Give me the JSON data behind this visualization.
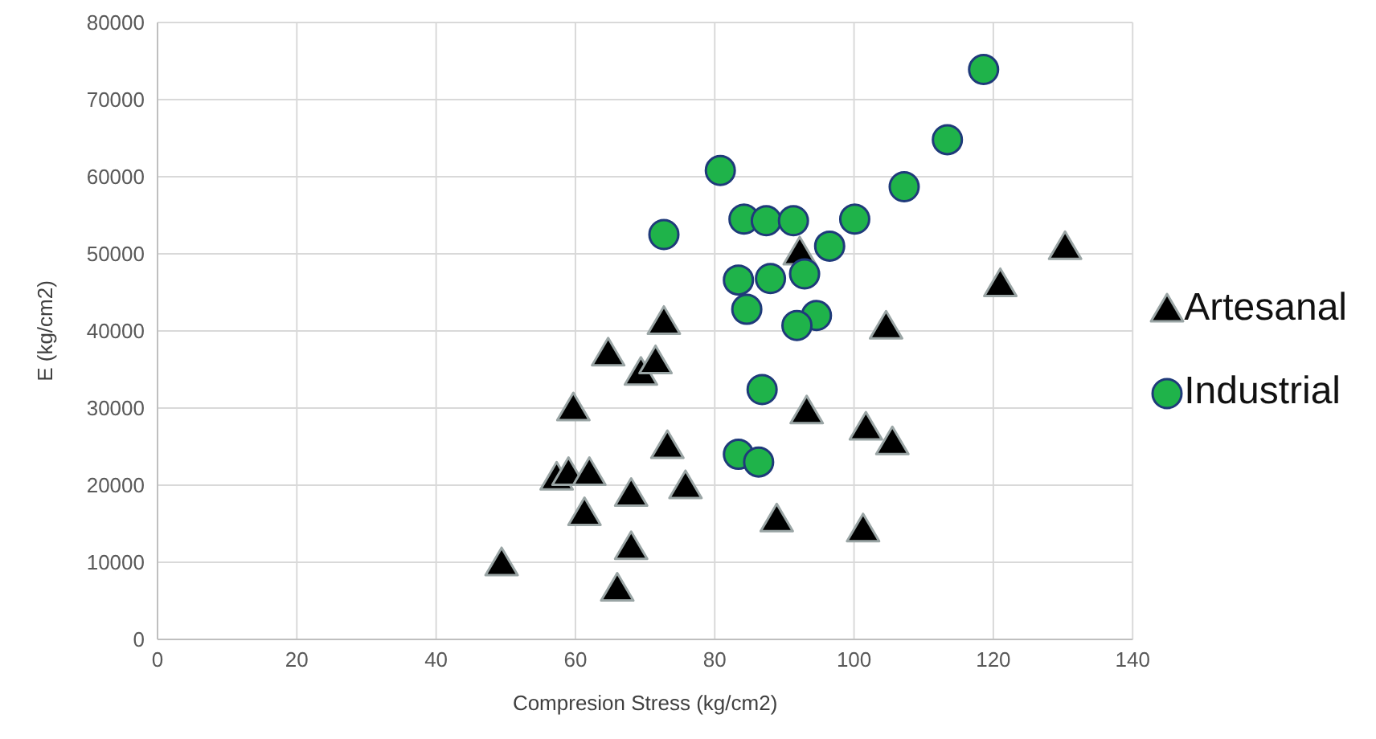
{
  "chart_data": {
    "type": "scatter",
    "xlabel": "Compresion Stress (kg/cm2)",
    "ylabel": "E (kg/cm2)",
    "xlim": [
      0,
      140
    ],
    "xticks": [
      0,
      20,
      40,
      60,
      80,
      100,
      120,
      140
    ],
    "ylim": [
      0,
      80000
    ],
    "yticks": [
      0,
      10000,
      20000,
      30000,
      40000,
      50000,
      60000,
      70000,
      80000
    ],
    "grid": true,
    "legend": "right",
    "series": [
      {
        "name": "Artesanal",
        "color": "#000000",
        "marker": "triangle",
        "x": [
          49.4,
          59.7,
          57.3,
          59,
          62,
          61.3,
          64.7,
          68,
          68,
          66,
          69.4,
          71.5,
          72.7,
          73.2,
          75.8,
          88.9,
          93.2,
          92.2,
          101.7,
          101.3,
          104.6,
          105.5,
          121,
          130.3
        ],
        "values": [
          9800,
          29900,
          20900,
          21500,
          21500,
          16300,
          37000,
          18800,
          11900,
          6500,
          34500,
          36000,
          41100,
          25000,
          19800,
          15500,
          29500,
          50100,
          27400,
          14200,
          40500,
          25500,
          46000,
          50800
        ]
      },
      {
        "name": "Industrial",
        "color": "#1fb34a",
        "marker": "circle",
        "x": [
          118.6,
          113.4,
          107.2,
          80.8,
          100.1,
          84.2,
          87.4,
          91.3,
          96.5,
          72.7,
          83.4,
          88,
          92.9,
          84.6,
          94.6,
          91.8,
          86.8,
          83.4,
          86.3
        ],
        "values": [
          73900,
          64800,
          58700,
          60800,
          54500,
          54500,
          54300,
          54300,
          51000,
          52500,
          46600,
          46800,
          47400,
          42800,
          42000,
          40700,
          32400,
          24000,
          23000
        ]
      }
    ]
  }
}
